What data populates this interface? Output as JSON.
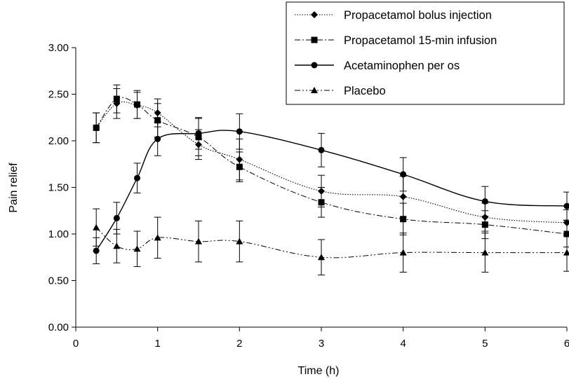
{
  "chart_data": {
    "type": "line",
    "title": "",
    "xlabel": "Time (h)",
    "ylabel": "Pain relief",
    "xlim": [
      0,
      6
    ],
    "ylim": [
      0,
      3
    ],
    "x_ticks": [
      0,
      1,
      2,
      3,
      4,
      5,
      6
    ],
    "x_tick_labels": [
      "0",
      "1",
      "2",
      "3",
      "4",
      "5",
      "6"
    ],
    "y_ticks": [
      0,
      0.5,
      1,
      1.5,
      2,
      2.5,
      3
    ],
    "y_tick_labels": [
      "0.00",
      "0.50",
      "1.00",
      "1.50",
      "2.00",
      "2.50",
      "3.00"
    ],
    "grid": false,
    "legend_position": "top-right",
    "series": [
      {
        "name": "Propacetamol bolus injection",
        "marker": "diamond",
        "line_style": "dotted",
        "color": "#000000",
        "x": [
          0.25,
          0.5,
          0.75,
          1,
          1.5,
          2,
          3,
          4,
          5,
          6
        ],
        "y": [
          2.14,
          2.4,
          2.38,
          2.3,
          1.96,
          1.8,
          1.46,
          1.4,
          1.18,
          1.12
        ],
        "err": [
          0.16,
          0.16,
          0.14,
          0.15,
          0.16,
          0.22,
          0.17,
          0.22,
          0.15,
          0.14
        ]
      },
      {
        "name": "Propacetamol 15-min infusion",
        "marker": "square",
        "line_style": "dashdot",
        "color": "#000000",
        "x": [
          0.25,
          0.5,
          0.75,
          1,
          1.5,
          2,
          3,
          4,
          5,
          6
        ],
        "y": [
          2.14,
          2.45,
          2.39,
          2.22,
          2.04,
          1.72,
          1.34,
          1.16,
          1.1,
          1.0
        ],
        "err": [
          0.16,
          0.15,
          0.15,
          0.18,
          0.2,
          0.16,
          0.16,
          0.17,
          0.15,
          0.14
        ]
      },
      {
        "name": "Acetaminophen per os",
        "marker": "circle",
        "line_style": "solid",
        "color": "#000000",
        "x": [
          0.25,
          0.5,
          0.75,
          1,
          1.5,
          2,
          3,
          4,
          5,
          6
        ],
        "y": [
          0.82,
          1.17,
          1.6,
          2.02,
          2.08,
          2.1,
          1.9,
          1.64,
          1.35,
          1.3
        ],
        "err": [
          0.14,
          0.17,
          0.16,
          0.18,
          0.17,
          0.19,
          0.18,
          0.18,
          0.16,
          0.15
        ]
      },
      {
        "name": "Placebo",
        "marker": "triangle",
        "line_style": "dashdotdot",
        "color": "#000000",
        "x": [
          0.25,
          0.5,
          0.75,
          1,
          1.5,
          2,
          3,
          4,
          5,
          6
        ],
        "y": [
          1.07,
          0.87,
          0.84,
          0.96,
          0.92,
          0.92,
          0.75,
          0.8,
          0.8,
          0.8
        ],
        "err": [
          0.2,
          0.18,
          0.19,
          0.22,
          0.22,
          0.22,
          0.19,
          0.21,
          0.21,
          0.2
        ]
      }
    ]
  }
}
